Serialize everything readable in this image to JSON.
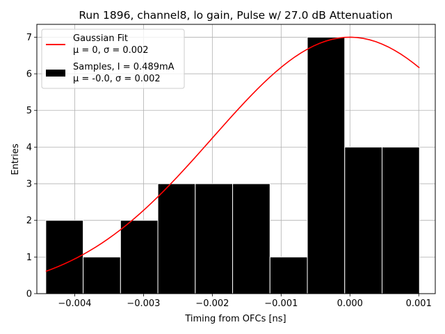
{
  "chart_data": {
    "type": "bar",
    "title": "Run 1896, channel8, lo gain, Pulse w/ 27.0 dB Attenuation",
    "xlabel": "Timing from OFCs [ns]",
    "ylabel": "Entries",
    "xlim": [
      -0.00455,
      0.00124
    ],
    "ylim": [
      0,
      7.35
    ],
    "grid": true,
    "xticks": [
      -0.004,
      -0.003,
      -0.002,
      -0.001,
      0.0,
      0.001
    ],
    "xtick_labels": [
      "−0.004",
      "−0.003",
      "−0.002",
      "−0.001",
      "0.000",
      "0.001"
    ],
    "yticks": [
      0,
      1,
      2,
      3,
      4,
      5,
      6,
      7
    ],
    "ytick_labels": [
      "0",
      "1",
      "2",
      "3",
      "4",
      "5",
      "6",
      "7"
    ],
    "histogram": {
      "name": "Samples, I = 0.489mA",
      "stats": "μ = -0.0, σ = 0.002",
      "bin_edges": [
        -0.00442,
        -0.003877,
        -0.003334,
        -0.002791,
        -0.002248,
        -0.001705,
        -0.001162,
        -0.000619,
        -7.6e-05,
        0.000467,
        0.00101
      ],
      "counts": [
        2,
        1,
        2,
        3,
        3,
        3,
        1,
        7,
        4,
        4
      ],
      "color": "#000000",
      "edgecolor": "#ffffff"
    },
    "fit": {
      "name": "Gaussian Fit",
      "stats": "μ = 0, σ = 0.002",
      "amplitude": 7.0,
      "mean": 0.0,
      "sigma": 0.002,
      "x_range": [
        -0.00442,
        0.00101
      ],
      "color": "#ff0000"
    },
    "legend": {
      "location": "top-left",
      "entries": [
        {
          "line1": "Gaussian Fit",
          "line2": "μ = 0, σ = 0.002",
          "kind": "line",
          "color": "#ff0000"
        },
        {
          "line1": "Samples, I = 0.489mA",
          "line2": "μ = -0.0, σ = 0.002",
          "kind": "patch",
          "color": "#000000"
        }
      ]
    }
  }
}
